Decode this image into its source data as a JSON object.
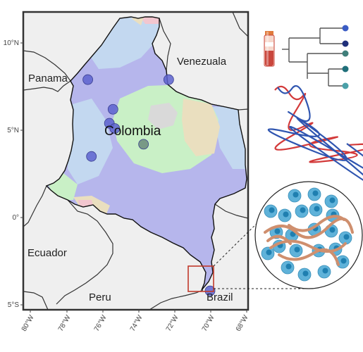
{
  "map": {
    "countries": {
      "colombia": "Colombia",
      "panama": "Panama",
      "venezuela": "Venezuala",
      "ecuador": "Ecuador",
      "peru": "Peru",
      "brazil": "Brazil"
    },
    "lat_ticks": [
      "10°N",
      "5°N",
      "0°",
      "5°S"
    ],
    "lon_ticks": [
      "80°W",
      "78°W",
      "76°W",
      "74°W",
      "72°W",
      "70°W",
      "68°W"
    ],
    "colors": {
      "ocean": "#efefef",
      "land_other": "#efefef",
      "colombia_base": "#b6b6ec",
      "light_blue_zone": "#c3d8f0",
      "green_zone": "#c9f0c6",
      "grey_zone": "#d9d9d9",
      "tan_zone": "#eadfbf",
      "pink_zone": "#f2c6cf",
      "site_point_blue": "#5d63cf",
      "site_point_grey": "#6b8a7a",
      "highlight_box": "#c0392b"
    },
    "sample_sites": [
      {
        "lon": -76.8,
        "lat": 7.9,
        "color": "blue"
      },
      {
        "lon": -72.3,
        "lat": 7.9,
        "color": "blue"
      },
      {
        "lon": -75.4,
        "lat": 6.2,
        "color": "blue"
      },
      {
        "lon": -75.6,
        "lat": 5.4,
        "color": "blue"
      },
      {
        "lon": -75.3,
        "lat": 5.1,
        "color": "blue"
      },
      {
        "lon": -73.7,
        "lat": 4.2,
        "color": "grey"
      },
      {
        "lon": -76.6,
        "lat": 3.5,
        "color": "blue"
      },
      {
        "lon": -70.0,
        "lat": -4.2,
        "color": "blue"
      }
    ]
  },
  "legend_icons": {
    "tube": "blood-sample-tube-icon",
    "tree": "phylogenetic-tree-icon",
    "dna": "dna-strand-icon",
    "cells": "parasite-cells-icon",
    "tree_tip_colors": [
      "#3a5cc4",
      "#1f2f7a",
      "#3f7f7a",
      "#1f6f7a",
      "#4aa0a8"
    ]
  }
}
